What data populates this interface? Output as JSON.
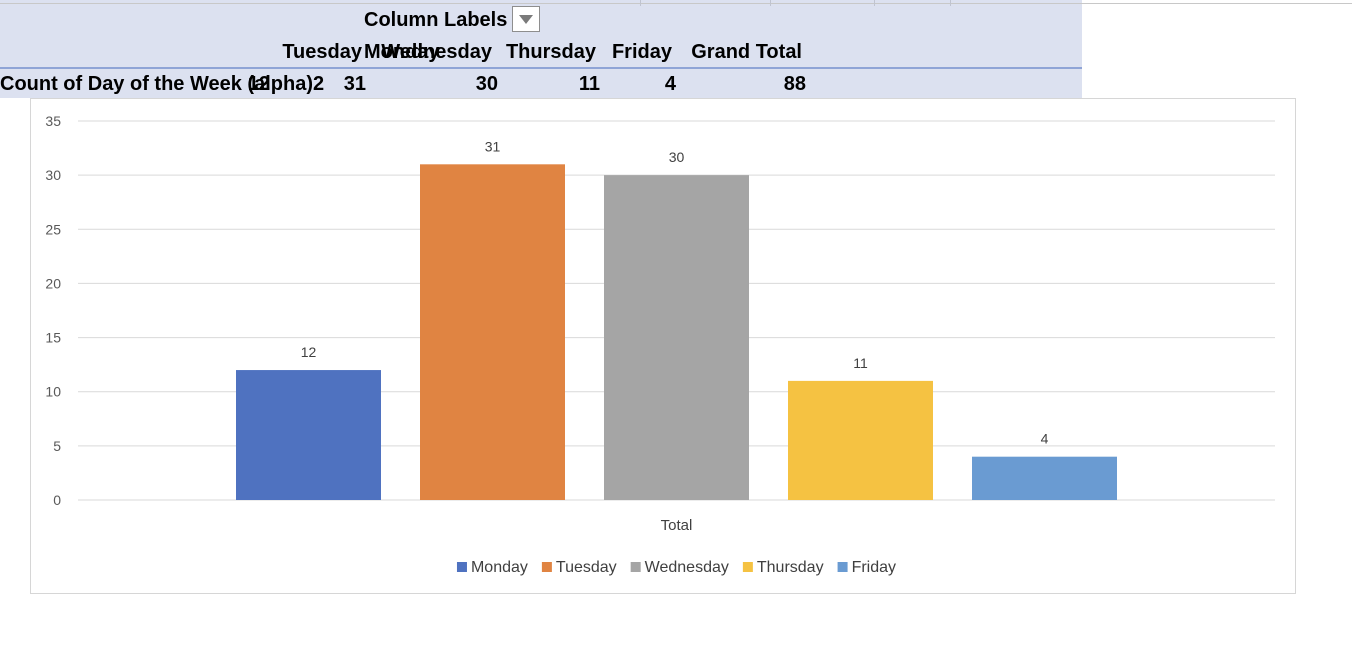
{
  "pivot": {
    "column_labels": "Column Labels",
    "row_label": "Count of Day of the Week (alpha)2",
    "headers": [
      "Monday",
      "Tuesday",
      "Wednesday",
      "Thursday",
      "Friday",
      "Grand Total"
    ],
    "values": [
      "12",
      "31",
      "30",
      "11",
      "4",
      "88"
    ]
  },
  "chart_data": {
    "type": "bar",
    "categories": [
      "Total"
    ],
    "series": [
      {
        "name": "Monday",
        "values": [
          12
        ],
        "color": "#4f72c0"
      },
      {
        "name": "Tuesday",
        "values": [
          31
        ],
        "color": "#e08442"
      },
      {
        "name": "Wednesday",
        "values": [
          30
        ],
        "color": "#a5a5a5"
      },
      {
        "name": "Thursday",
        "values": [
          11
        ],
        "color": "#f5c242"
      },
      {
        "name": "Friday",
        "values": [
          4
        ],
        "color": "#6a9bd2"
      }
    ],
    "ylim": [
      0,
      35
    ],
    "yticks": [
      "0",
      "5",
      "10",
      "15",
      "20",
      "25",
      "30",
      "35"
    ],
    "xlabel": "",
    "ylabel": "",
    "title": "",
    "grid": true,
    "legend_position": "bottom",
    "data_labels": true
  }
}
